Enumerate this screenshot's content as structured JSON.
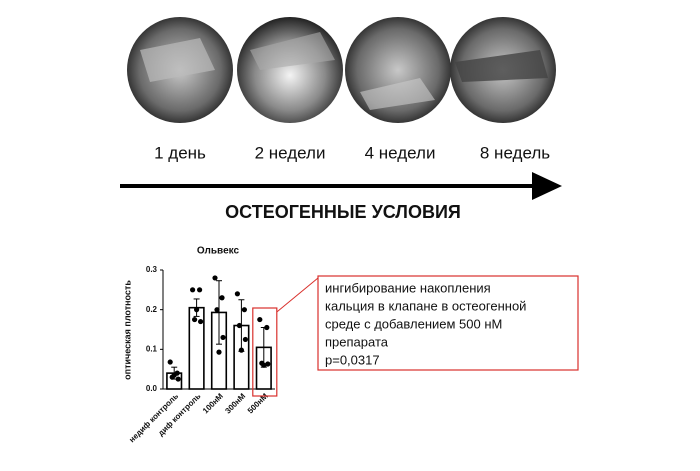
{
  "timeline": {
    "labels": [
      "1 день",
      "2 недели",
      "4 недели",
      "8 недель"
    ],
    "caption": "ОСТЕОГЕННЫЕ УСЛОВИЯ"
  },
  "chart_data": {
    "type": "bar",
    "title": "Ольвекс",
    "ylabel": "оптическая плотность",
    "categories": [
      "недиф контроль",
      "диф контроль",
      "100нМ",
      "300нМ",
      "500нМ"
    ],
    "values": [
      0.04,
      0.205,
      0.193,
      0.16,
      0.105
    ],
    "errors": [
      0.015,
      0.022,
      0.08,
      0.065,
      0.05
    ],
    "points": [
      [
        0.068,
        0.04,
        0.03,
        0.025,
        0.035
      ],
      [
        0.25,
        0.25,
        0.175,
        0.17,
        0.2
      ],
      [
        0.28,
        0.23,
        0.2,
        0.13,
        0.093
      ],
      [
        0.24,
        0.2,
        0.16,
        0.125,
        0.098
      ],
      [
        0.175,
        0.155,
        0.065,
        0.063,
        0.06
      ]
    ],
    "color": "#ffffff",
    "highlight_color": "#d9302c",
    "ylim": [
      0,
      0.3
    ],
    "yticks": [
      {
        "value": 0,
        "label": "0.0"
      },
      0.1,
      0.2,
      0.3
    ],
    "highlight_index": 4,
    "annotation": [
      "ингибирование накопления",
      "кальция в клапане в остеогенной",
      "среде с добавлением 500 нМ",
      "препарата",
      "p=0,0317"
    ]
  }
}
